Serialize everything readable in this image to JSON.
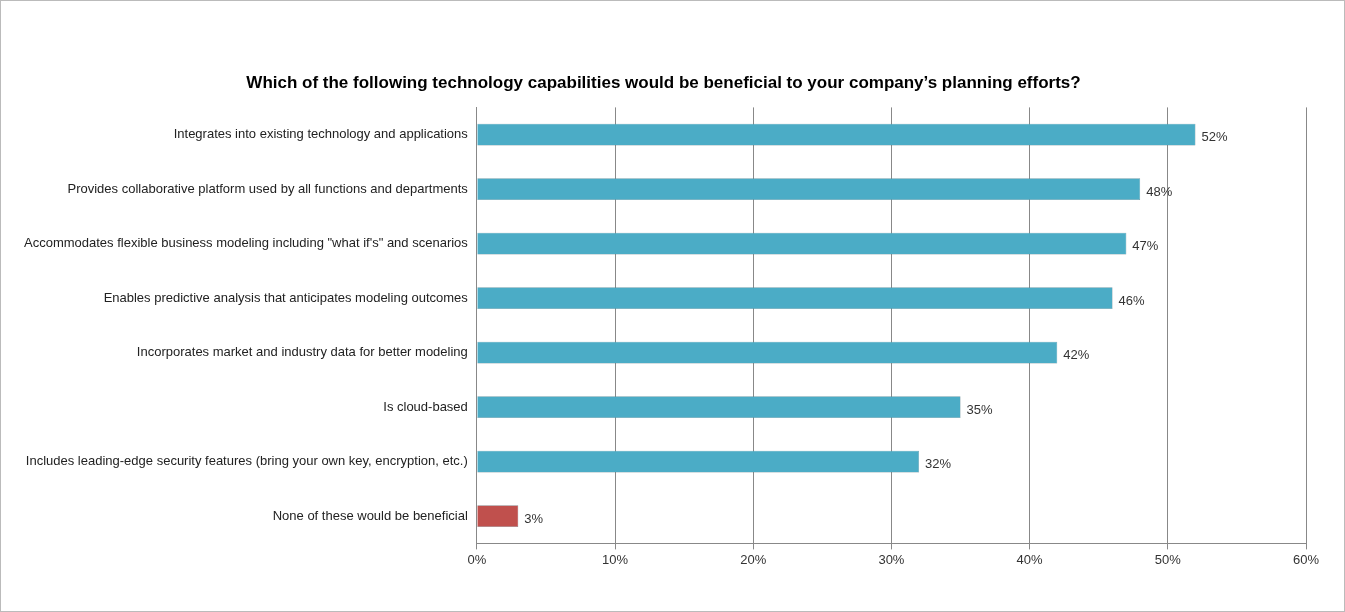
{
  "chart_data": {
    "type": "bar",
    "orientation": "horizontal",
    "title": "Which of the following technology capabilities would be beneficial to your company’s planning efforts?",
    "categories": [
      "Integrates into existing technology and applications",
      "Provides collaborative platform used by all functions and departments",
      "Accommodates flexible business modeling including \"what if's\" and scenarios",
      "Enables predictive analysis that anticipates modeling outcomes",
      "Incorporates market and industry data for better modeling",
      "Is cloud-based",
      "Includes leading-edge security features (bring your own key, encryption, etc.)",
      "None of these would be beneficial"
    ],
    "values": [
      52,
      48,
      47,
      46,
      42,
      35,
      32,
      3
    ],
    "colors": [
      "#4bacc6",
      "#4bacc6",
      "#4bacc6",
      "#4bacc6",
      "#4bacc6",
      "#4bacc6",
      "#4bacc6",
      "#c0504d"
    ],
    "value_labels": [
      "52%",
      "48%",
      "47%",
      "46%",
      "42%",
      "35%",
      "32%",
      "3%"
    ],
    "xlim": [
      0,
      60
    ],
    "xticks": [
      {
        "value": 0,
        "label": "0%"
      },
      {
        "value": 10,
        "label": "10%"
      },
      {
        "value": 20,
        "label": "20%"
      },
      {
        "value": 30,
        "label": "30%"
      },
      {
        "value": 40,
        "label": "40%"
      },
      {
        "value": 50,
        "label": "50%"
      },
      {
        "value": 60,
        "label": "60%"
      }
    ],
    "grid": "x",
    "legend": false
  }
}
